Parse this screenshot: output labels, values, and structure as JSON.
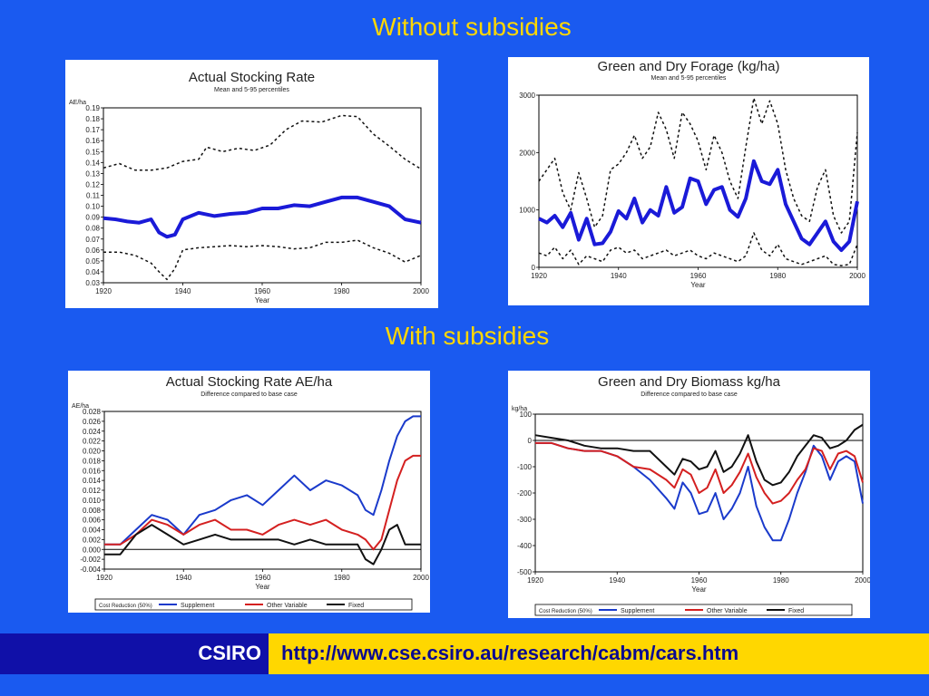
{
  "headings": {
    "without": "Without subsidies",
    "with": "With subsidies"
  },
  "footer": {
    "org": "CSIRO",
    "url": "http://www.cse.csiro.au/research/cabm/cars.htm",
    "colors": {
      "band": "#ffd700",
      "logo_bg": "#1010a8",
      "url_text": "#0a0a90"
    }
  },
  "chart_data": [
    {
      "type": "line",
      "title": "Actual Stocking Rate",
      "subtitle": "Mean and 5-95 percentiles",
      "ylabel": "AE/ha",
      "xlabel": "Year",
      "xlim": [
        1920,
        2000
      ],
      "ylim": [
        0.03,
        0.19
      ],
      "xticks": [
        1920,
        1940,
        1960,
        1980,
        2000
      ],
      "yticks": [
        0.03,
        0.04,
        0.05,
        0.06,
        0.07,
        0.08,
        0.09,
        0.1,
        0.11,
        0.12,
        0.13,
        0.14,
        0.15,
        0.16,
        0.17,
        0.18,
        0.19
      ],
      "ytick_labels": [
        "0.03",
        "0.04",
        "0.05",
        "0.06",
        "0.07",
        "0.08",
        "0.09",
        "0.10",
        "0.11",
        "0.12",
        "0.13",
        "0.14",
        "0.15",
        "0.16",
        "0.17",
        "0.18",
        "0.19"
      ],
      "zero_line": false,
      "legend": null,
      "series": [
        {
          "style": "mean",
          "color": "#1a1ad8",
          "width": 4,
          "x": [
            1920,
            1923,
            1926,
            1929,
            1932,
            1934,
            1936,
            1938,
            1940,
            1944,
            1948,
            1952,
            1956,
            1960,
            1964,
            1968,
            1972,
            1976,
            1980,
            1984,
            1988,
            1992,
            1996,
            2000
          ],
          "y": [
            0.089,
            0.088,
            0.086,
            0.085,
            0.088,
            0.076,
            0.072,
            0.074,
            0.088,
            0.094,
            0.091,
            0.093,
            0.094,
            0.098,
            0.098,
            0.101,
            0.1,
            0.104,
            0.108,
            0.108,
            0.104,
            0.1,
            0.088,
            0.085
          ]
        },
        {
          "style": "upper",
          "color": "#111111",
          "width": 1.5,
          "dash": "3,3",
          "x": [
            1920,
            1924,
            1928,
            1932,
            1936,
            1940,
            1944,
            1946,
            1950,
            1954,
            1958,
            1962,
            1966,
            1970,
            1975,
            1980,
            1984,
            1988,
            1992,
            1996,
            2000
          ],
          "y": [
            0.135,
            0.139,
            0.133,
            0.133,
            0.135,
            0.141,
            0.143,
            0.154,
            0.15,
            0.153,
            0.151,
            0.156,
            0.17,
            0.178,
            0.177,
            0.183,
            0.182,
            0.166,
            0.155,
            0.143,
            0.134
          ]
        },
        {
          "style": "lower",
          "color": "#111111",
          "width": 1.5,
          "dash": "3,3",
          "x": [
            1920,
            1924,
            1928,
            1932,
            1934,
            1936,
            1938,
            1940,
            1944,
            1948,
            1952,
            1956,
            1960,
            1964,
            1968,
            1972,
            1976,
            1980,
            1984,
            1988,
            1992,
            1996,
            2000
          ],
          "y": [
            0.058,
            0.058,
            0.055,
            0.048,
            0.04,
            0.033,
            0.043,
            0.06,
            0.062,
            0.063,
            0.064,
            0.063,
            0.064,
            0.063,
            0.061,
            0.062,
            0.067,
            0.067,
            0.069,
            0.062,
            0.057,
            0.049,
            0.055
          ]
        }
      ]
    },
    {
      "type": "line",
      "title": "Green and Dry Forage (kg/ha)",
      "subtitle": "Mean and 5-95 percentiles",
      "ylabel": "",
      "xlabel": "Year",
      "xlim": [
        1920,
        2000
      ],
      "ylim": [
        0,
        3000
      ],
      "xticks": [
        1920,
        1940,
        1960,
        1980,
        2000
      ],
      "yticks": [
        0,
        1000,
        2000,
        3000
      ],
      "ytick_labels": [
        "0",
        "1000",
        "2000",
        "3000"
      ],
      "zero_line": false,
      "legend": null,
      "series": [
        {
          "style": "mean",
          "color": "#1a1ad8",
          "width": 4,
          "x": [
            1920,
            1922,
            1924,
            1926,
            1928,
            1930,
            1932,
            1934,
            1936,
            1938,
            1940,
            1942,
            1944,
            1946,
            1948,
            1950,
            1952,
            1954,
            1956,
            1958,
            1960,
            1962,
            1964,
            1966,
            1968,
            1970,
            1972,
            1974,
            1976,
            1978,
            1980,
            1982,
            1984,
            1986,
            1988,
            1990,
            1992,
            1994,
            1996,
            1998,
            2000
          ],
          "y": [
            850,
            780,
            900,
            700,
            950,
            480,
            850,
            400,
            420,
            620,
            980,
            850,
            1200,
            780,
            1000,
            900,
            1400,
            950,
            1050,
            1550,
            1500,
            1100,
            1350,
            1400,
            1000,
            880,
            1200,
            1850,
            1500,
            1450,
            1700,
            1100,
            800,
            500,
            400,
            600,
            800,
            450,
            300,
            450,
            1150
          ]
        },
        {
          "style": "upper",
          "color": "#111111",
          "width": 1.5,
          "dash": "3,3",
          "x": [
            1920,
            1922,
            1924,
            1926,
            1928,
            1930,
            1932,
            1934,
            1936,
            1938,
            1940,
            1942,
            1944,
            1946,
            1948,
            1950,
            1952,
            1954,
            1956,
            1958,
            1960,
            1962,
            1964,
            1966,
            1968,
            1970,
            1972,
            1974,
            1976,
            1978,
            1980,
            1982,
            1984,
            1986,
            1988,
            1990,
            1992,
            1994,
            1996,
            1998,
            2000
          ],
          "y": [
            1500,
            1700,
            1900,
            1300,
            1000,
            1650,
            1200,
            700,
            900,
            1700,
            1800,
            2000,
            2300,
            1900,
            2100,
            2700,
            2400,
            1900,
            2700,
            2500,
            2200,
            1700,
            2300,
            2000,
            1500,
            1200,
            2100,
            2950,
            2500,
            2900,
            2500,
            1700,
            1200,
            900,
            800,
            1400,
            1700,
            900,
            600,
            800,
            2350
          ]
        },
        {
          "style": "lower",
          "color": "#111111",
          "width": 1.5,
          "dash": "3,3",
          "x": [
            1920,
            1922,
            1924,
            1926,
            1928,
            1930,
            1932,
            1934,
            1936,
            1938,
            1940,
            1942,
            1944,
            1946,
            1948,
            1950,
            1952,
            1954,
            1956,
            1958,
            1960,
            1962,
            1964,
            1966,
            1968,
            1970,
            1972,
            1974,
            1976,
            1978,
            1980,
            1982,
            1984,
            1986,
            1988,
            1990,
            1992,
            1994,
            1996,
            1998,
            2000
          ],
          "y": [
            250,
            200,
            350,
            150,
            300,
            50,
            200,
            150,
            100,
            300,
            350,
            250,
            300,
            150,
            200,
            250,
            300,
            200,
            250,
            300,
            200,
            150,
            250,
            200,
            150,
            100,
            200,
            600,
            300,
            200,
            400,
            150,
            100,
            50,
            100,
            150,
            200,
            50,
            30,
            50,
            400
          ]
        }
      ]
    },
    {
      "type": "line",
      "title": "Actual Stocking Rate AE/ha",
      "subtitle": "Difference compared to base case",
      "ylabel": "AE/ha",
      "xlabel": "Year",
      "xlim": [
        1920,
        2000
      ],
      "ylim": [
        -0.004,
        0.028
      ],
      "xticks": [
        1920,
        1940,
        1960,
        1980,
        2000
      ],
      "yticks": [
        -0.004,
        -0.002,
        0.0,
        0.002,
        0.004,
        0.006,
        0.008,
        0.01,
        0.012,
        0.014,
        0.016,
        0.018,
        0.02,
        0.022,
        0.024,
        0.026,
        0.028
      ],
      "ytick_labels": [
        "-0.004",
        "-0.002",
        "0.000",
        "0.002",
        "0.004",
        "0.006",
        "0.008",
        "0.010",
        "0.012",
        "0.014",
        "0.016",
        "0.018",
        "0.020",
        "0.022",
        "0.024",
        "0.026",
        "0.028"
      ],
      "zero_line": true,
      "legend": {
        "label": "Cost Reduction (50%)",
        "entries": [
          "Supplement",
          "Other Variable",
          "Fixed"
        ]
      },
      "series": [
        {
          "name": "Supplement",
          "color": "#1a3acb",
          "width": 2,
          "x": [
            1920,
            1924,
            1928,
            1932,
            1936,
            1940,
            1944,
            1948,
            1952,
            1956,
            1960,
            1964,
            1968,
            1972,
            1976,
            1980,
            1984,
            1986,
            1988,
            1990,
            1992,
            1994,
            1996,
            1998,
            2000
          ],
          "y": [
            0.001,
            0.001,
            0.004,
            0.007,
            0.006,
            0.003,
            0.007,
            0.008,
            0.01,
            0.011,
            0.009,
            0.012,
            0.015,
            0.012,
            0.014,
            0.013,
            0.011,
            0.008,
            0.007,
            0.012,
            0.018,
            0.023,
            0.026,
            0.027,
            0.027
          ]
        },
        {
          "name": "Other Variable",
          "color": "#d42020",
          "width": 2,
          "x": [
            1920,
            1924,
            1928,
            1932,
            1936,
            1940,
            1944,
            1948,
            1952,
            1956,
            1960,
            1964,
            1968,
            1972,
            1976,
            1980,
            1984,
            1986,
            1988,
            1990,
            1992,
            1994,
            1996,
            1998,
            2000
          ],
          "y": [
            0.001,
            0.001,
            0.003,
            0.006,
            0.005,
            0.003,
            0.005,
            0.006,
            0.004,
            0.004,
            0.003,
            0.005,
            0.006,
            0.005,
            0.006,
            0.004,
            0.003,
            0.002,
            0.0,
            0.002,
            0.008,
            0.014,
            0.018,
            0.019,
            0.019
          ]
        },
        {
          "name": "Fixed",
          "color": "#111111",
          "width": 2,
          "x": [
            1920,
            1924,
            1928,
            1932,
            1936,
            1940,
            1944,
            1948,
            1952,
            1956,
            1960,
            1964,
            1968,
            1972,
            1976,
            1980,
            1984,
            1986,
            1988,
            1990,
            1992,
            1994,
            1996,
            1998,
            2000
          ],
          "y": [
            -0.001,
            -0.001,
            0.003,
            0.005,
            0.003,
            0.001,
            0.002,
            0.003,
            0.002,
            0.002,
            0.002,
            0.002,
            0.001,
            0.002,
            0.001,
            0.001,
            0.001,
            -0.002,
            -0.003,
            0.0,
            0.004,
            0.005,
            0.001,
            0.001,
            0.001
          ]
        }
      ]
    },
    {
      "type": "line",
      "title": "Green and Dry Biomass kg/ha",
      "subtitle": "Difference compared to base case",
      "ylabel": "kg/ha",
      "xlabel": "Year",
      "xlim": [
        1920,
        2000
      ],
      "ylim": [
        -500,
        100
      ],
      "xticks": [
        1920,
        1940,
        1960,
        1980,
        2000
      ],
      "yticks": [
        -500,
        -400,
        -300,
        -200,
        -100,
        0,
        100
      ],
      "ytick_labels": [
        "-500",
        "-400",
        "-300",
        "-200",
        "-100",
        "0",
        "100"
      ],
      "zero_line": true,
      "legend": {
        "label": "Cost Reduction (50%)",
        "entries": [
          "Supplement",
          "Other Variable",
          "Fixed"
        ]
      },
      "series": [
        {
          "name": "Supplement",
          "color": "#1a3acb",
          "width": 2,
          "x": [
            1920,
            1924,
            1928,
            1932,
            1936,
            1940,
            1944,
            1948,
            1952,
            1954,
            1956,
            1958,
            1960,
            1962,
            1964,
            1966,
            1968,
            1970,
            1972,
            1974,
            1976,
            1978,
            1980,
            1982,
            1984,
            1986,
            1988,
            1990,
            1992,
            1994,
            1996,
            1998,
            2000
          ],
          "y": [
            -10,
            -10,
            -30,
            -40,
            -40,
            -60,
            -100,
            -150,
            -220,
            -260,
            -160,
            -200,
            -280,
            -270,
            -200,
            -300,
            -260,
            -200,
            -100,
            -250,
            -330,
            -380,
            -380,
            -300,
            -200,
            -120,
            -20,
            -60,
            -150,
            -80,
            -60,
            -80,
            -240
          ]
        },
        {
          "name": "Other Variable",
          "color": "#d42020",
          "width": 2,
          "x": [
            1920,
            1924,
            1928,
            1932,
            1936,
            1940,
            1944,
            1948,
            1952,
            1954,
            1956,
            1958,
            1960,
            1962,
            1964,
            1966,
            1968,
            1970,
            1972,
            1974,
            1976,
            1978,
            1980,
            1982,
            1984,
            1986,
            1988,
            1990,
            1992,
            1994,
            1996,
            1998,
            2000
          ],
          "y": [
            -10,
            -10,
            -30,
            -40,
            -40,
            -60,
            -100,
            -110,
            -150,
            -180,
            -110,
            -130,
            -200,
            -180,
            -110,
            -200,
            -170,
            -120,
            -50,
            -140,
            -200,
            -240,
            -230,
            -200,
            -150,
            -110,
            -30,
            -40,
            -110,
            -50,
            -40,
            -60,
            -160
          ]
        },
        {
          "name": "Fixed",
          "color": "#111111",
          "width": 2,
          "x": [
            1920,
            1924,
            1928,
            1932,
            1936,
            1940,
            1944,
            1948,
            1952,
            1954,
            1956,
            1958,
            1960,
            1962,
            1964,
            1966,
            1968,
            1970,
            1972,
            1974,
            1976,
            1978,
            1980,
            1982,
            1984,
            1986,
            1988,
            1990,
            1992,
            1994,
            1996,
            1998,
            2000
          ],
          "y": [
            20,
            10,
            0,
            -20,
            -30,
            -30,
            -40,
            -40,
            -100,
            -130,
            -70,
            -80,
            -110,
            -100,
            -40,
            -120,
            -100,
            -50,
            20,
            -80,
            -150,
            -170,
            -160,
            -120,
            -60,
            -20,
            20,
            10,
            -30,
            -20,
            0,
            40,
            60
          ]
        }
      ]
    }
  ]
}
